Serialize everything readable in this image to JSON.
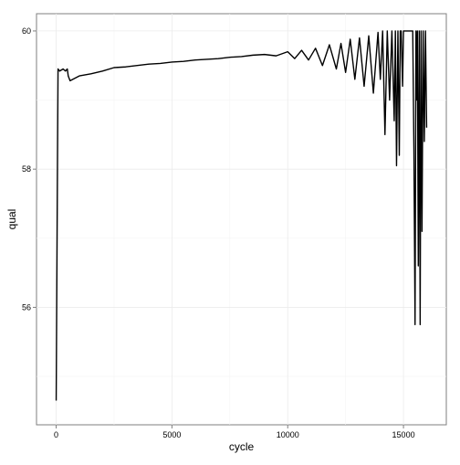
{
  "chart_data": {
    "type": "line",
    "title": "",
    "xlabel": "cycle",
    "ylabel": "qual",
    "xlim": [
      -850,
      16850
    ],
    "ylim": [
      54.3,
      60.25
    ],
    "x_ticks": [
      0,
      5000,
      10000,
      15000
    ],
    "x_tick_labels": [
      "0",
      "5000",
      "10000",
      "15000"
    ],
    "y_ticks": [
      56,
      58,
      60
    ],
    "y_tick_labels": [
      "56",
      "58",
      "60"
    ],
    "grid": true,
    "legend": "none",
    "line_color": "#000000",
    "series": [
      {
        "x": [
          0,
          80,
          150,
          300,
          400,
          480,
          520,
          600,
          1000,
          1500,
          2000,
          2500,
          3000,
          3500,
          4000,
          4500,
          5000,
          5500,
          6000,
          6500,
          7000,
          7500,
          8000,
          8500,
          9000,
          9500,
          10000,
          10300,
          10600,
          10900,
          11200,
          11500,
          11800,
          12100,
          12300,
          12500,
          12700,
          12900,
          13100,
          13300,
          13500,
          13700,
          13900,
          14000,
          14100,
          14200,
          14300,
          14400,
          14500,
          14600,
          14650,
          14700,
          14760,
          14820,
          14860,
          14900,
          14960,
          15000,
          15100,
          15200,
          15300,
          15400,
          15450,
          15500,
          15540,
          15580,
          15600,
          15640,
          15680,
          15720,
          15760,
          15800,
          15850,
          15900,
          15950,
          16000
        ],
        "y": [
          54.65,
          59.45,
          59.42,
          59.45,
          59.42,
          59.45,
          59.35,
          59.28,
          59.35,
          59.38,
          59.42,
          59.47,
          59.48,
          59.5,
          59.52,
          59.53,
          59.55,
          59.56,
          59.58,
          59.59,
          59.6,
          59.62,
          59.63,
          59.65,
          59.66,
          59.64,
          59.7,
          59.6,
          59.72,
          59.58,
          59.75,
          59.5,
          59.8,
          59.45,
          59.82,
          59.4,
          59.88,
          59.3,
          59.9,
          59.2,
          59.93,
          59.1,
          59.98,
          59.3,
          60.0,
          58.5,
          60.0,
          59.0,
          60.0,
          58.7,
          60.0,
          58.05,
          60.0,
          58.2,
          60.0,
          60.0,
          59.2,
          60.0,
          60.0,
          60.0,
          60.0,
          60.0,
          58.3,
          55.75,
          60.0,
          59.0,
          60.0,
          56.6,
          60.0,
          55.75,
          60.0,
          57.1,
          60.0,
          58.4,
          60.0,
          58.6
        ]
      }
    ]
  }
}
